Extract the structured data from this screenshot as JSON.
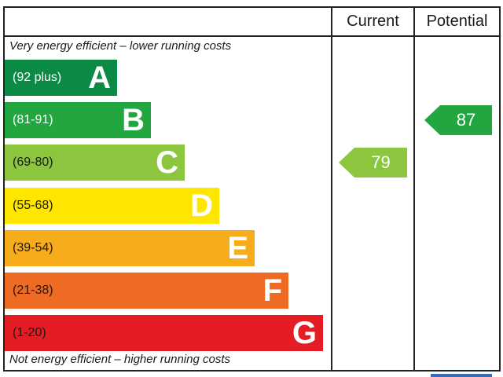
{
  "chart_data": {
    "type": "bar",
    "columns": {
      "current": "Current",
      "potential": "Potential"
    },
    "top_note": "Very energy efficient – lower running costs",
    "bottom_note": "Not energy efficient – higher running costs",
    "bands": [
      {
        "letter": "A",
        "range": "(92 plus)",
        "color": "#0b8a45",
        "text_color": "#ffffff"
      },
      {
        "letter": "B",
        "range": "(81-91)",
        "color": "#22a640",
        "text_color": "#ffffff"
      },
      {
        "letter": "C",
        "range": "(69-80)",
        "color": "#8cc63f",
        "text_color": "#1a1a1a"
      },
      {
        "letter": "D",
        "range": "(55-68)",
        "color": "#ffe600",
        "text_color": "#1a1a1a"
      },
      {
        "letter": "E",
        "range": "(39-54)",
        "color": "#f7ac1b",
        "text_color": "#1a1a1a"
      },
      {
        "letter": "F",
        "range": "(21-38)",
        "color": "#ef6b24",
        "text_color": "#1a1a1a"
      },
      {
        "letter": "G",
        "range": "(1-20)",
        "color": "#e31d23",
        "text_color": "#1a1a1a"
      }
    ],
    "current": {
      "value": "79",
      "band": "C",
      "color": "#8cc63f"
    },
    "potential": {
      "value": "87",
      "band": "B",
      "color": "#22a640"
    }
  }
}
